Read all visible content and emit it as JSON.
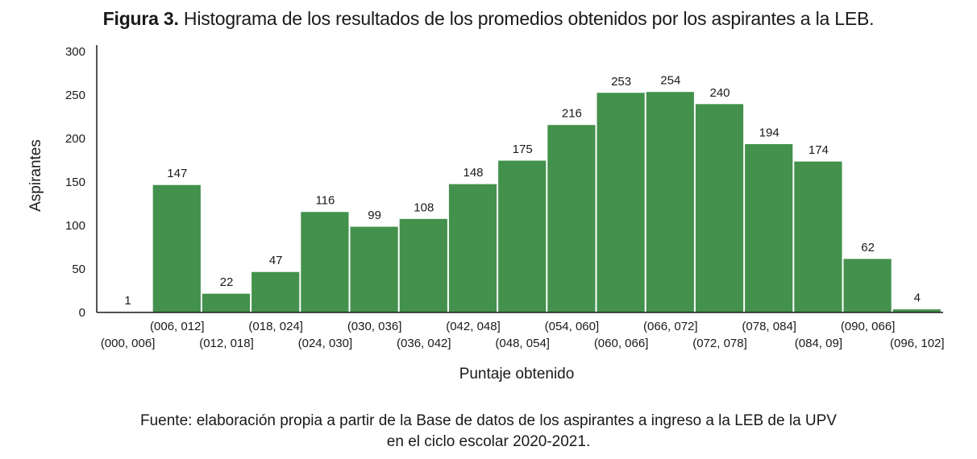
{
  "figure": {
    "title_lead": "Figura 3.",
    "title_text": "Histograma de los resultados de los promedios obtenidos por los aspirantes a la LEB.",
    "source_line1": "Fuente: elaboración propia a partir de la Base de datos de los aspirantes a ingreso a la LEB de la UPV",
    "source_line2": "en el ciclo escolar 2020-2021."
  },
  "chart_data": {
    "type": "bar",
    "xlabel": "Puntaje obtenido",
    "ylabel": "Aspirantes",
    "ylim": [
      0,
      300
    ],
    "yticks": [
      0,
      50,
      100,
      150,
      200,
      250,
      300
    ],
    "categories": [
      "(000, 006]",
      "(006, 012]",
      "(012, 018]",
      "(018, 024]",
      "(024, 030]",
      "(030, 036]",
      "(036, 042]",
      "(042, 048]",
      "(048, 054]",
      "(054, 060]",
      "(060, 066]",
      "(066, 072]",
      "(072, 078]",
      "(078, 084]",
      "(084, 09]",
      "(090, 066]",
      "(096, 102]"
    ],
    "values": [
      1,
      147,
      22,
      47,
      116,
      99,
      108,
      148,
      175,
      216,
      253,
      254,
      240,
      194,
      174,
      62,
      4
    ],
    "bar_color": "#43914c",
    "grid": false,
    "legend": "none"
  }
}
